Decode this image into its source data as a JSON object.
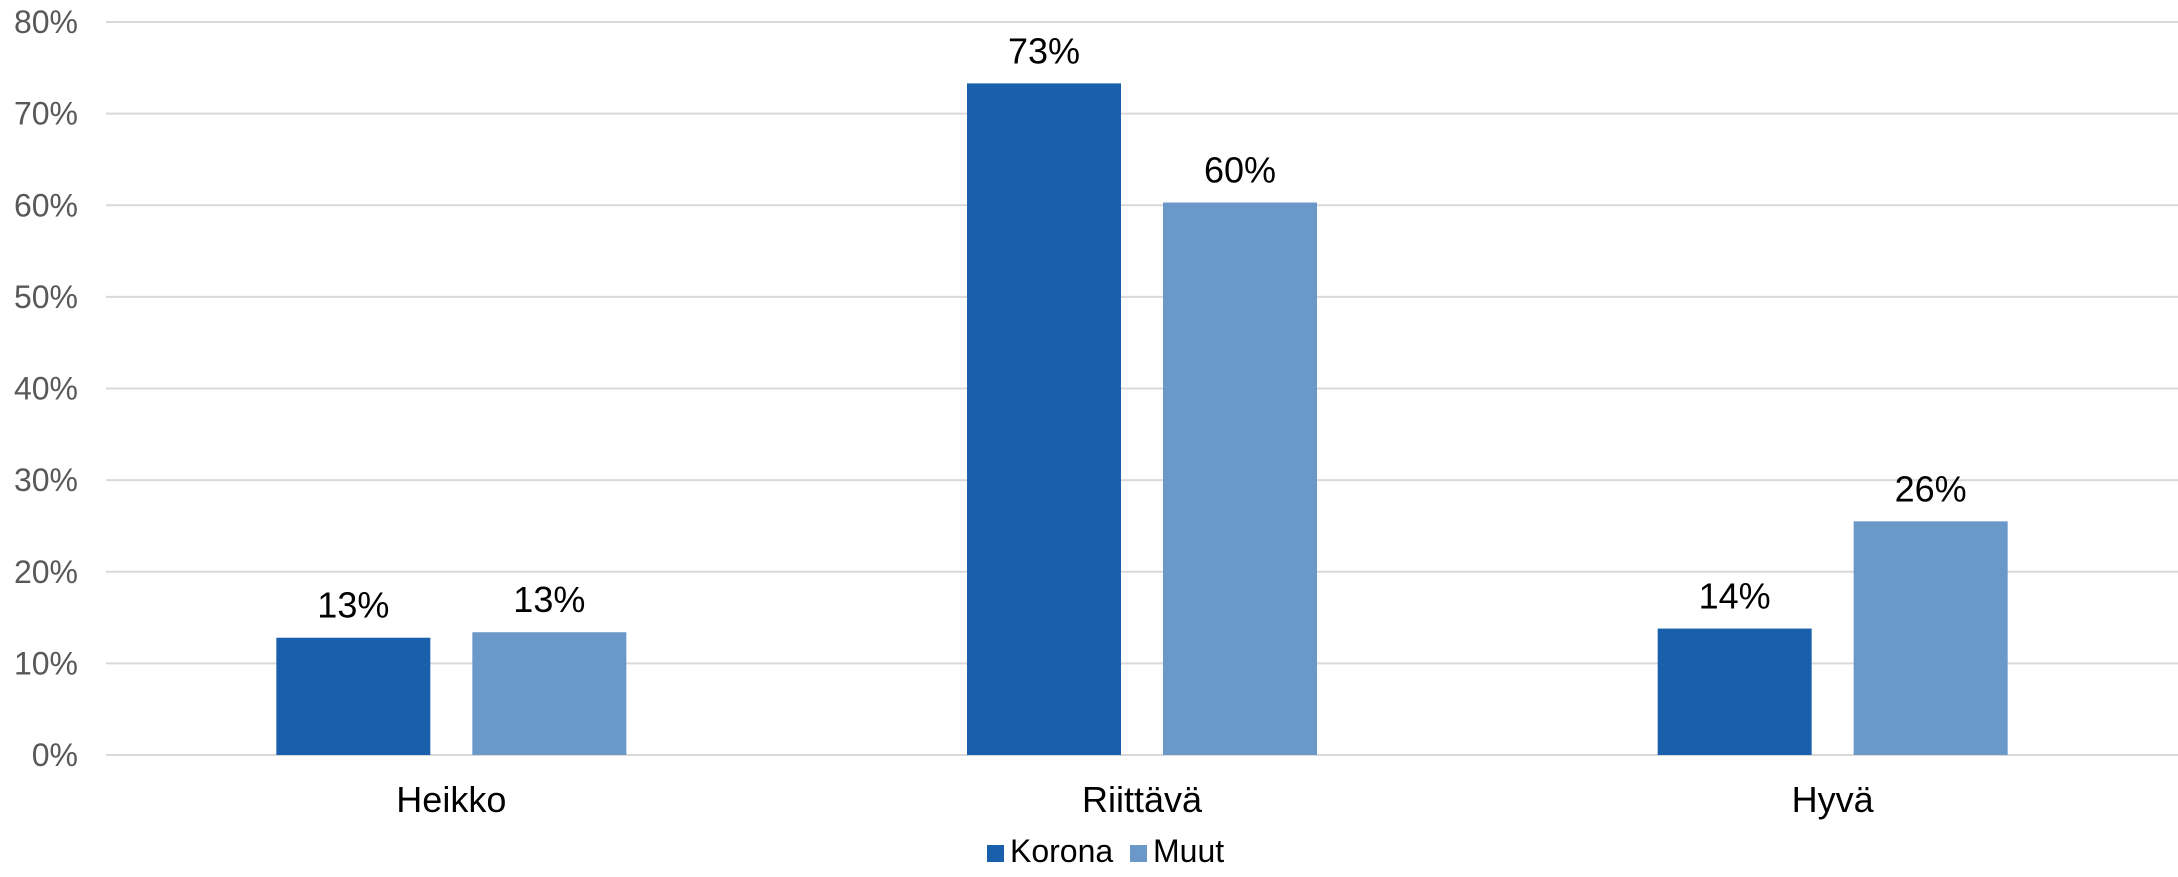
{
  "chart_data": {
    "type": "bar",
    "categories": [
      "Heikko",
      "Riittävä",
      "Hyvä"
    ],
    "series": [
      {
        "name": "Korona",
        "values": [
          12.8,
          73.3,
          13.8
        ],
        "labels": [
          "13%",
          "73%",
          "14%"
        ],
        "color": "#1a5fab"
      },
      {
        "name": "Muut",
        "values": [
          13.4,
          60.3,
          25.5
        ],
        "labels": [
          "13%",
          "60%",
          "26%"
        ],
        "color": "#6a98c9"
      }
    ],
    "ylim": [
      0,
      80
    ],
    "yticks": [
      "0%",
      "10%",
      "20%",
      "30%",
      "40%",
      "50%",
      "60%",
      "70%",
      "80%"
    ],
    "grid": true,
    "gridColor": "#d9d9d9",
    "legend": "bottom"
  }
}
